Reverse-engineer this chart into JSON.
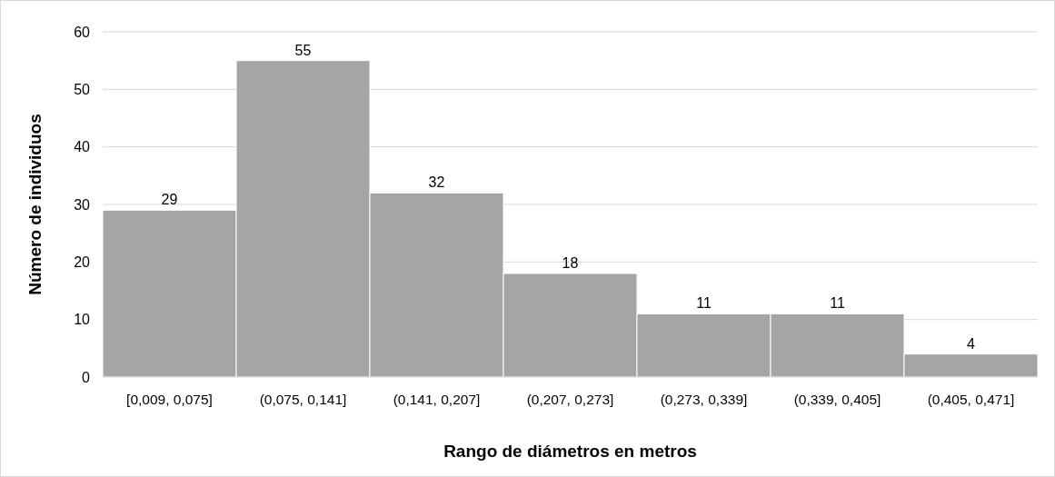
{
  "chart_data": {
    "type": "bar",
    "xlabel": "Rango de diámetros en metros",
    "ylabel": "Número de individuos",
    "categories": [
      "[0,009, 0,075]",
      "(0,075, 0,141]",
      "(0,141, 0,207]",
      "(0,207, 0,273]",
      "(0,273, 0,339]",
      "(0,339, 0,405]",
      "(0,405, 0,471]"
    ],
    "values": [
      29,
      55,
      32,
      18,
      11,
      11,
      4
    ],
    "color": "#a5a5a5",
    "ylim": [
      0,
      60
    ],
    "yticks": [
      0,
      10,
      20,
      30,
      40,
      50,
      60
    ],
    "grid": "y",
    "data_labels": true
  }
}
